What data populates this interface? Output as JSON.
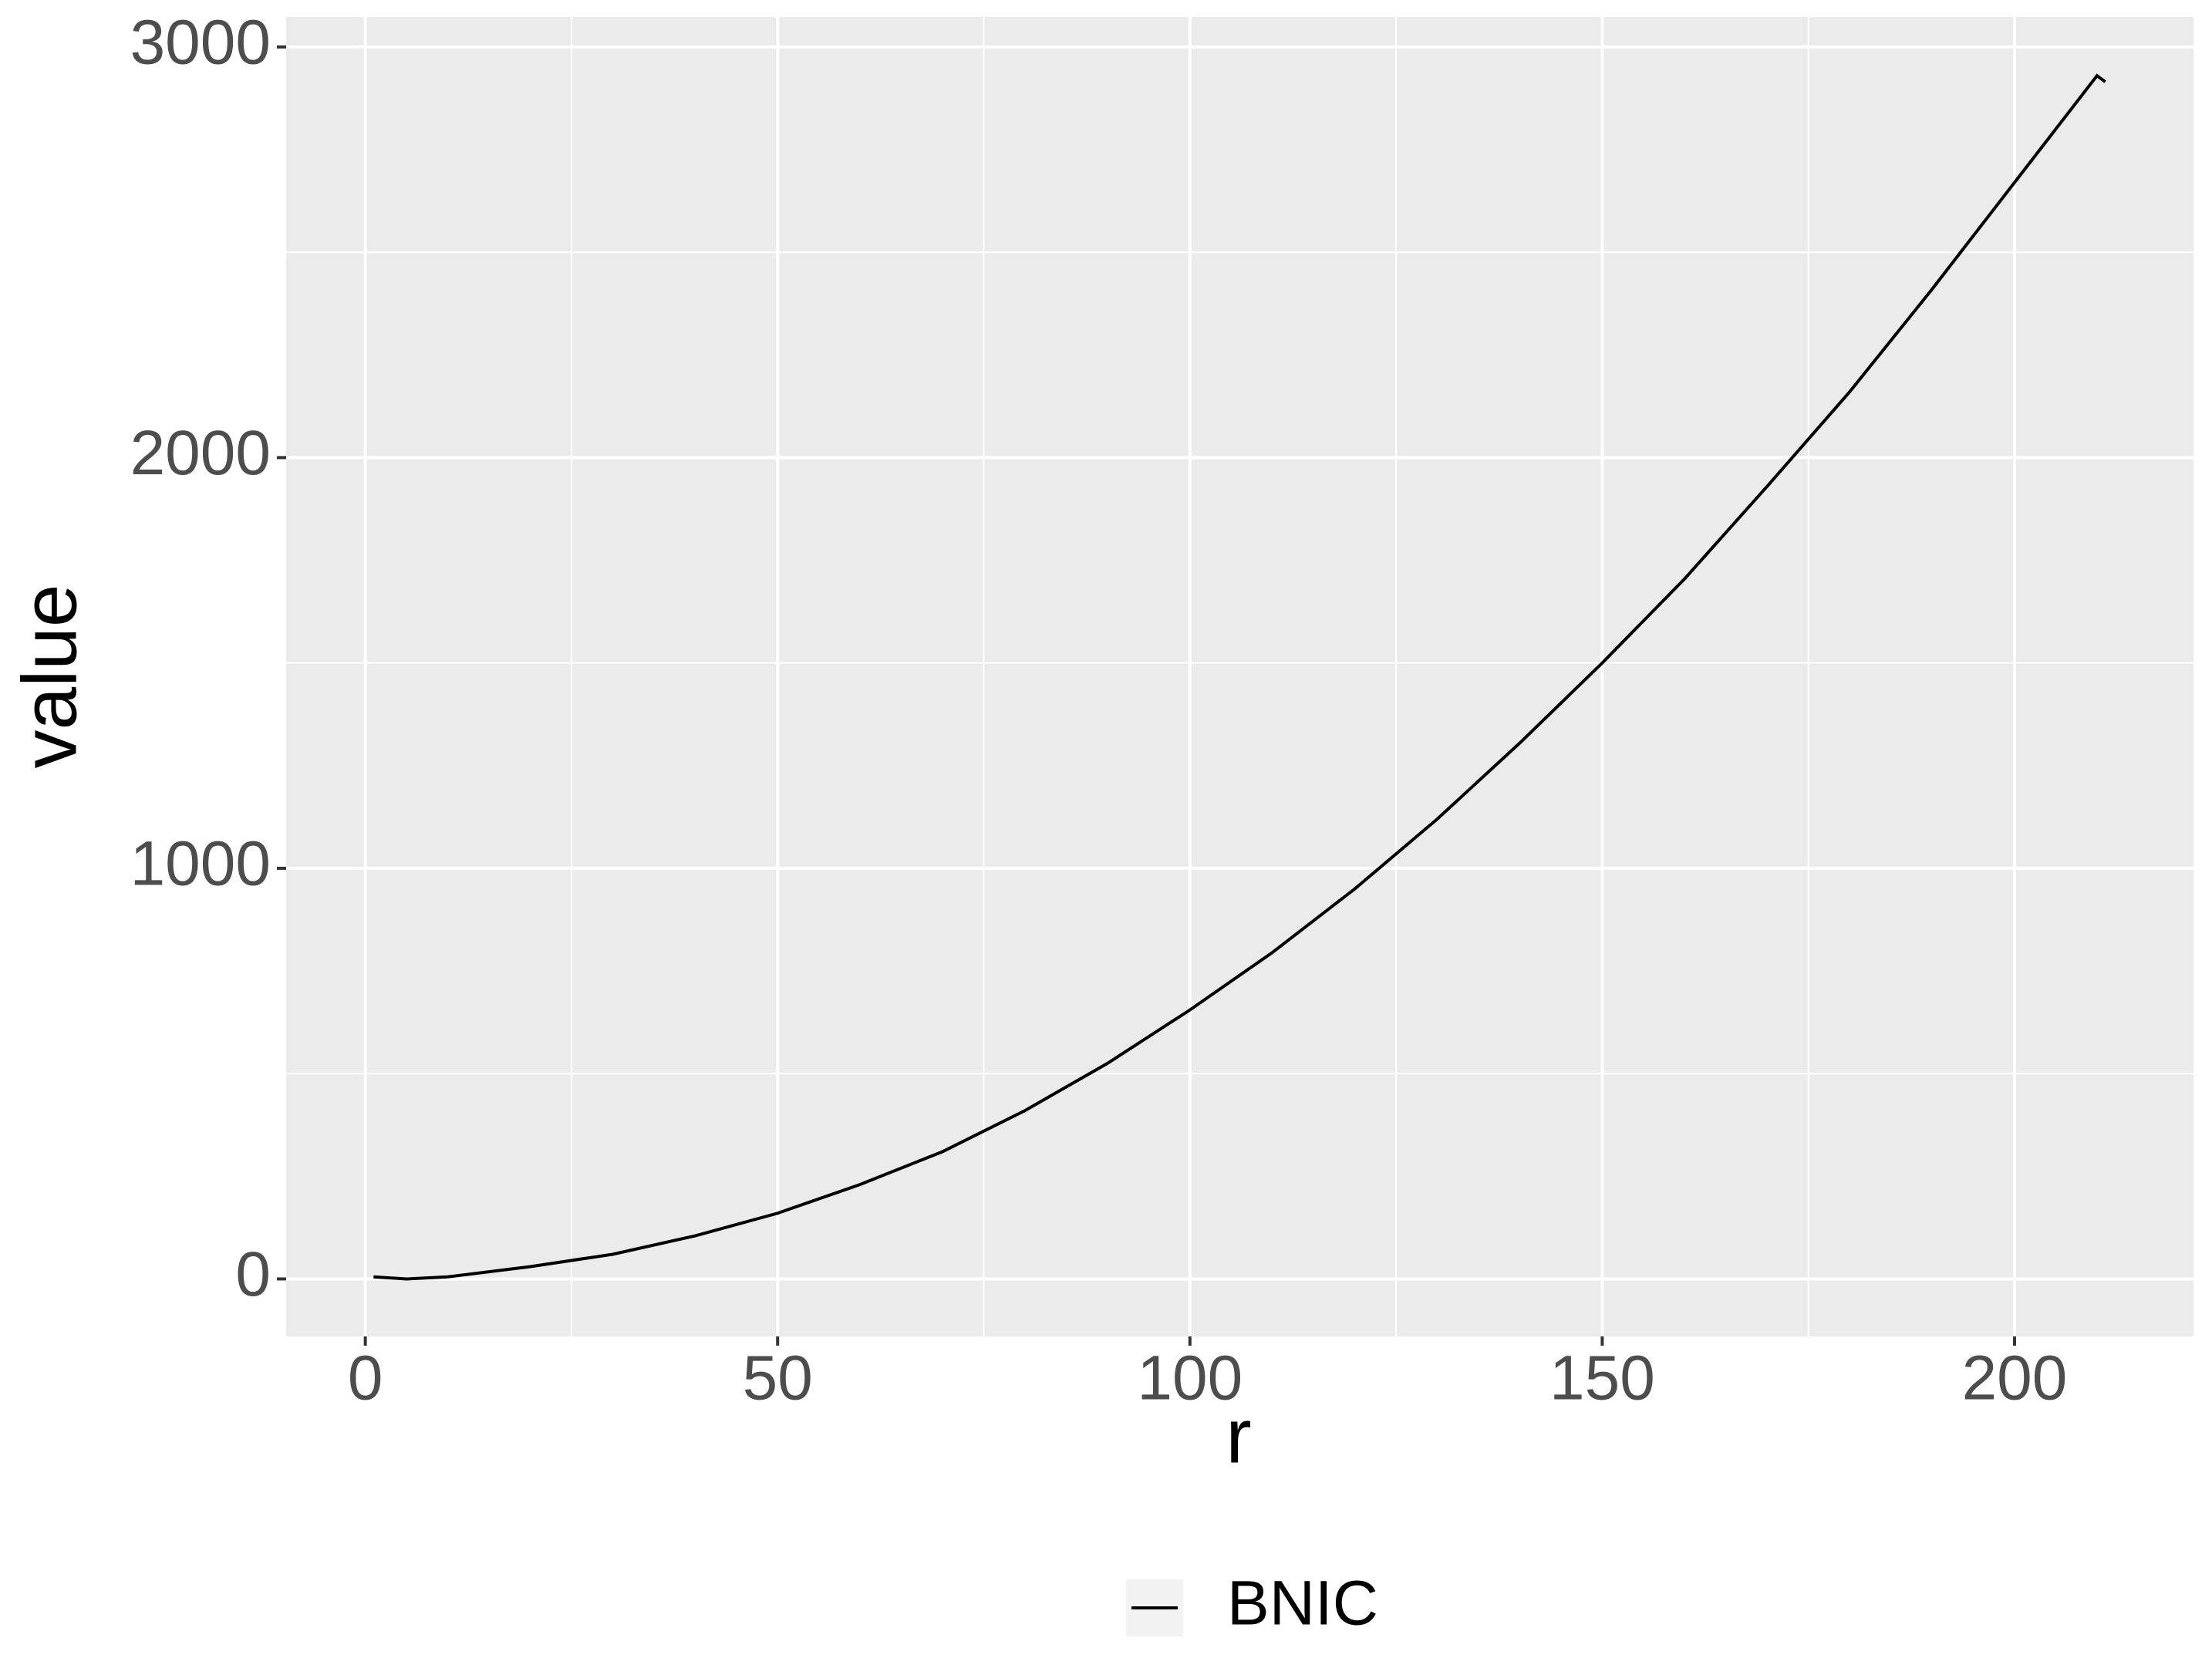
{
  "chart_data": {
    "type": "line",
    "x": [
      1,
      5,
      10,
      20,
      30,
      40,
      50,
      60,
      70,
      80,
      90,
      100,
      110,
      120,
      130,
      140,
      150,
      160,
      170,
      180,
      190,
      200,
      210,
      211
    ],
    "series": [
      {
        "name": "BNIC",
        "color": "#000000",
        "values": [
          5,
          0,
          5,
          30,
          60,
          105,
          160,
          230,
          310,
          410,
          525,
          655,
          795,
          950,
          1120,
          1305,
          1500,
          1705,
          1930,
          2160,
          2410,
          2670,
          2930,
          2915
        ]
      }
    ],
    "xlabel": "r",
    "ylabel": "value",
    "xlim": [
      -9.6,
      221.7
    ],
    "xticks": [
      0,
      50,
      100,
      150,
      200
    ],
    "ylim": [
      -140,
      3073
    ],
    "yticks": [
      0,
      1000,
      2000,
      3000
    ],
    "grid": true,
    "legend": "bottom"
  }
}
